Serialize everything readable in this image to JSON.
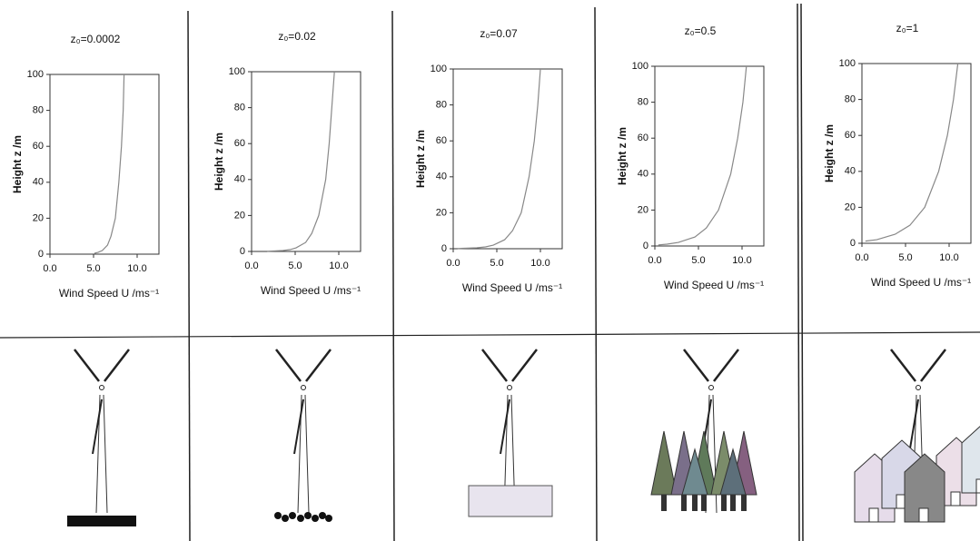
{
  "chart_data": [
    {
      "type": "line",
      "title": "z₀=0.0002",
      "xlabel": "Wind Speed U /ms⁻¹",
      "ylabel": "Height z /m",
      "color": "#888888",
      "x": [
        5.1,
        5.5,
        6.0,
        6.6,
        7.0,
        7.5,
        7.9,
        8.2,
        8.4,
        8.5
      ],
      "values": [
        0.5,
        1,
        2,
        5,
        10,
        20,
        40,
        60,
        80,
        100
      ],
      "xlim": [
        0,
        12.5
      ],
      "ylim": [
        0,
        100
      ],
      "xticks": [
        {
          "value": 0,
          "label": "0.0"
        },
        {
          "value": 5,
          "label": "5.0"
        },
        {
          "value": 10,
          "label": "10.0"
        }
      ],
      "yticks": [
        0,
        20,
        40,
        60,
        80,
        100
      ]
    },
    {
      "type": "line",
      "title": "z₀=0.02",
      "xlabel": "Wind Speed U /ms⁻¹",
      "ylabel": "Height z /m",
      "color": "#888888",
      "x": [
        1.8,
        3.6,
        4.4,
        5.1,
        6.2,
        6.9,
        7.7,
        8.5,
        8.9,
        9.2,
        9.5
      ],
      "values": [
        0.1,
        0.5,
        1,
        2,
        5,
        10,
        20,
        40,
        60,
        80,
        100
      ],
      "xlim": [
        0,
        12.5
      ],
      "ylim": [
        0,
        100
      ],
      "xticks": [
        {
          "value": 0,
          "label": "0.0"
        },
        {
          "value": 5,
          "label": "5.0"
        },
        {
          "value": 10,
          "label": "10.0"
        }
      ],
      "yticks": [
        0,
        20,
        40,
        60,
        80,
        100
      ]
    },
    {
      "type": "line",
      "title": "z₀=0.07",
      "xlabel": "Wind Speed U /ms⁻¹",
      "ylabel": "Height z /m",
      "color": "#888888",
      "x": [
        0.5,
        2.7,
        3.7,
        4.6,
        5.9,
        6.8,
        7.8,
        8.7,
        9.3,
        9.7,
        10.0
      ],
      "values": [
        0.1,
        0.5,
        1,
        2,
        5,
        10,
        20,
        40,
        60,
        80,
        100
      ],
      "xlim": [
        0,
        12.5
      ],
      "ylim": [
        0,
        100
      ],
      "xticks": [
        {
          "value": 0,
          "label": "0.0"
        },
        {
          "value": 5,
          "label": "5.0"
        },
        {
          "value": 10,
          "label": "10.0"
        }
      ],
      "yticks": [
        0,
        20,
        40,
        60,
        80,
        100
      ]
    },
    {
      "type": "line",
      "title": "z₀=0.5",
      "xlabel": "Wind Speed U /ms⁻¹",
      "ylabel": "Height z /m",
      "color": "#888888",
      "x": [
        0.4,
        1.4,
        2.7,
        4.6,
        5.9,
        7.3,
        8.7,
        9.5,
        10.1,
        10.5
      ],
      "values": [
        0.6,
        1,
        2,
        5,
        10,
        20,
        40,
        60,
        80,
        100
      ],
      "xlim": [
        0,
        12.5
      ],
      "ylim": [
        0,
        100
      ],
      "xticks": [
        {
          "value": 0,
          "label": "0.0"
        },
        {
          "value": 5,
          "label": "5.0"
        },
        {
          "value": 10,
          "label": "10.0"
        }
      ],
      "yticks": [
        0,
        20,
        40,
        60,
        80,
        100
      ]
    },
    {
      "type": "line",
      "title": "z₀=1",
      "xlabel": "Wind Speed U /ms⁻¹",
      "ylabel": "Height z /m",
      "color": "#888888",
      "x": [
        0.4,
        1.7,
        3.8,
        5.5,
        7.2,
        8.8,
        9.8,
        10.5,
        11.0
      ],
      "values": [
        1.2,
        2,
        5,
        10,
        20,
        40,
        60,
        80,
        100
      ],
      "xlim": [
        0,
        12.5
      ],
      "ylim": [
        0,
        100
      ],
      "xticks": [
        {
          "value": 0,
          "label": "0.0"
        },
        {
          "value": 5,
          "label": "5.0"
        },
        {
          "value": 10,
          "label": "10.0"
        }
      ],
      "yticks": [
        0,
        20,
        40,
        60,
        80,
        100
      ]
    }
  ]
}
